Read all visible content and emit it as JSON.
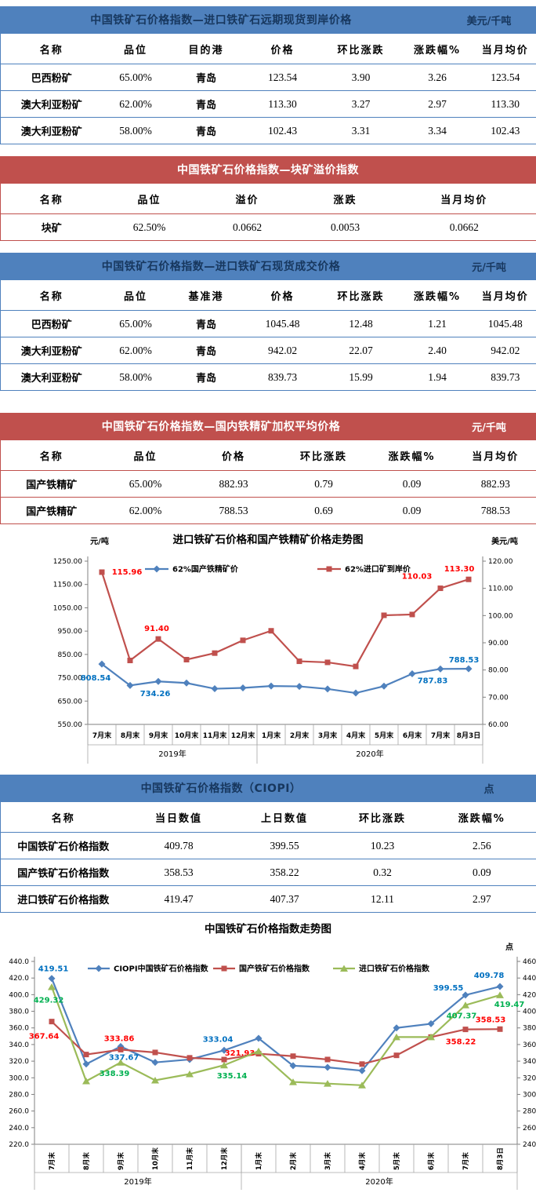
{
  "tables": [
    {
      "theme": "blue",
      "title": "中国铁矿石价格指数—进口铁矿石远期现货到岸价格",
      "unit": "美元/千吨",
      "columns": [
        "名称",
        "品位",
        "目的港",
        "价格",
        "环比涨跌",
        "涨跌幅%",
        "当月均价"
      ],
      "rows": [
        [
          "巴西粉矿",
          "65.00%",
          "青岛",
          "123.54",
          "3.90",
          "3.26",
          "123.54"
        ],
        [
          "澳大利亚粉矿",
          "62.00%",
          "青岛",
          "113.30",
          "3.27",
          "2.97",
          "113.30"
        ],
        [
          "澳大利亚粉矿",
          "58.00%",
          "青岛",
          "102.43",
          "3.31",
          "3.34",
          "102.43"
        ]
      ]
    },
    {
      "theme": "red",
      "title": "中国铁矿石价格指数—块矿溢价指数",
      "unit": "",
      "columns": [
        "名称",
        "品位",
        "溢价",
        "涨跌",
        "当月均价"
      ],
      "rows": [
        [
          "块矿",
          "62.50%",
          "0.0662",
          "0.0053",
          "0.0662"
        ]
      ]
    },
    {
      "theme": "blue",
      "title": "中国铁矿石价格指数—进口铁矿石现货成交价格",
      "unit": "元/千吨",
      "columns": [
        "名称",
        "品位",
        "基准港",
        "价格",
        "环比涨跌",
        "涨跌幅%",
        "当月均价"
      ],
      "rows": [
        [
          "巴西粉矿",
          "65.00%",
          "青岛",
          "1045.48",
          "12.48",
          "1.21",
          "1045.48"
        ],
        [
          "澳大利亚粉矿",
          "62.00%",
          "青岛",
          "942.02",
          "22.07",
          "2.40",
          "942.02"
        ],
        [
          "澳大利亚粉矿",
          "58.00%",
          "青岛",
          "839.73",
          "15.99",
          "1.94",
          "839.73"
        ]
      ]
    },
    {
      "theme": "red",
      "title": "中国铁矿石价格指数—国内铁精矿加权平均价格",
      "unit": "元/千吨",
      "columns": [
        "名称",
        "品位",
        "价格",
        "环比涨跌",
        "涨跌幅%",
        "当月均价"
      ],
      "rows": [
        [
          "国产铁精矿",
          "65.00%",
          "882.93",
          "0.79",
          "0.09",
          "882.93"
        ],
        [
          "国产铁精矿",
          "62.00%",
          "788.53",
          "0.69",
          "0.09",
          "788.53"
        ]
      ]
    },
    {
      "theme": "blue",
      "title": "中国铁矿石价格指数（CIOPI）",
      "unit": "点",
      "columns": [
        "名称",
        "当日数值",
        "上日数值",
        "环比涨跌",
        "涨跌幅%"
      ],
      "rows": [
        [
          "中国铁矿石价格指数",
          "409.78",
          "399.55",
          "10.23",
          "2.56"
        ],
        [
          "国产铁矿石价格指数",
          "358.53",
          "358.22",
          "0.32",
          "0.09"
        ],
        [
          "进口铁矿石价格指数",
          "419.47",
          "407.37",
          "12.11",
          "2.97"
        ]
      ]
    }
  ],
  "chart_data": [
    {
      "type": "line",
      "title": "进口铁矿石价格和国产铁精矿价格走势图",
      "left_caption": "元/吨",
      "right_caption": "美元/吨",
      "axes": {
        "left": {
          "min": 550,
          "max": 1250,
          "ticks": [
            "1250.00",
            "1150.00",
            "1050.00",
            "950.00",
            "850.00",
            "750.00",
            "650.00",
            "550.00"
          ]
        },
        "right": {
          "min": 60,
          "max": 120,
          "ticks": [
            "120.00",
            "110.00",
            "100.00",
            "90.00",
            "80.00",
            "70.00",
            "60.00"
          ]
        }
      },
      "categories": [
        "7月末",
        "8月末",
        "9月末",
        "10月末",
        "11月末",
        "12月末",
        "1月末",
        "2月末",
        "3月末",
        "4月末",
        "5月末",
        "6月末",
        "7月末",
        "8月3日"
      ],
      "year_groups": [
        {
          "label": "2019年",
          "span": 6
        },
        {
          "label": "2020年",
          "span": 8
        }
      ],
      "grid": false,
      "legend_position": "top-inside",
      "series": [
        {
          "name": "62%国产铁精矿价",
          "axis": "left",
          "color": "#4F81BD",
          "label_color": "#0070C0",
          "marker": "diamond",
          "values": [
            808.54,
            717.0,
            734.26,
            727.5,
            703.0,
            706.5,
            714.5,
            713.0,
            702.0,
            684.5,
            714.0,
            767.0,
            787.83,
            788.53
          ],
          "point_labels": [
            {
              "i": 0,
              "text": "808.54",
              "dx": -8,
              "dy": 21
            },
            {
              "i": 2,
              "text": "734.26",
              "dx": -4,
              "dy": 19
            },
            {
              "i": 12,
              "text": "787.83",
              "dx": -10,
              "dy": 18
            },
            {
              "i": 13,
              "text": "788.53",
              "dx": -6,
              "dy": -8
            }
          ]
        },
        {
          "name": "62%进口矿到岸价",
          "axis": "right",
          "color": "#C0504D",
          "label_color": "#FF0000",
          "marker": "square",
          "values": [
            115.96,
            83.5,
            91.4,
            83.8,
            86.2,
            90.9,
            94.4,
            83.2,
            82.8,
            81.3,
            100.1,
            100.4,
            110.03,
            113.3
          ],
          "point_labels": [
            {
              "i": 0,
              "text": "115.96",
              "dx": 32,
              "dy": 3
            },
            {
              "i": 2,
              "text": "91.40",
              "dx": -2,
              "dy": -10
            },
            {
              "i": 12,
              "text": "110.03",
              "dx": -30,
              "dy": -12
            },
            {
              "i": 13,
              "text": "113.30",
              "dx": -12,
              "dy": -10
            }
          ]
        }
      ]
    },
    {
      "type": "line",
      "title": "中国铁矿石价格指数走势图",
      "left_caption": "",
      "right_caption": "点",
      "axes": {
        "left": {
          "min": 220,
          "max": 440,
          "ticks": [
            "440.0",
            "420.0",
            "400.0",
            "380.0",
            "360.0",
            "340.0",
            "320.0",
            "300.0",
            "280.0",
            "260.0",
            "240.0",
            "220.0"
          ]
        },
        "right": {
          "min": 240,
          "max": 460,
          "ticks": [
            "460.0",
            "440.0",
            "420.0",
            "400.0",
            "380.0",
            "360.0",
            "340.0",
            "320.0",
            "300.0",
            "280.0",
            "260.0",
            "240.0"
          ]
        }
      },
      "categories": [
        "7月末",
        "8月末",
        "9月末",
        "10月末",
        "11月末",
        "12月末",
        "1月末",
        "2月末",
        "3月末",
        "4月末",
        "5月末",
        "6月末",
        "7月末",
        "8月3日"
      ],
      "year_groups": [
        {
          "label": "2019年",
          "span": 6
        },
        {
          "label": "2020年",
          "span": 8
        }
      ],
      "grid": false,
      "legend_position": "top-inside",
      "series": [
        {
          "name": "CIOPI中国铁矿石价格指数",
          "axis": "left",
          "color": "#4F81BD",
          "label_color": "#0070C0",
          "marker": "diamond",
          "values": [
            419.51,
            316.5,
            337.67,
            318.5,
            322.0,
            333.04,
            347.5,
            314.5,
            312.5,
            308.5,
            360.0,
            365.0,
            399.55,
            409.78
          ],
          "point_labels": [
            {
              "i": 0,
              "text": "419.51",
              "dx": 2,
              "dy": -9
            },
            {
              "i": 2,
              "text": "337.67",
              "dx": 4,
              "dy": 17
            },
            {
              "i": 5,
              "text": "333.04",
              "dx": -8,
              "dy": -11
            },
            {
              "i": 12,
              "text": "399.55",
              "dx": -22,
              "dy": -6
            },
            {
              "i": 13,
              "text": "409.78",
              "dx": -14,
              "dy": -11
            }
          ]
        },
        {
          "name": "国产铁矿石价格指数",
          "axis": "left",
          "color": "#C0504D",
          "label_color": "#FF0000",
          "marker": "square",
          "values": [
            367.64,
            328.0,
            333.86,
            330.5,
            324.0,
            321.93,
            329.0,
            326.0,
            322.0,
            316.5,
            327.0,
            349.0,
            358.22,
            358.53
          ],
          "point_labels": [
            {
              "i": 0,
              "text": "367.64",
              "dx": -10,
              "dy": 22
            },
            {
              "i": 2,
              "text": "333.86",
              "dx": -2,
              "dy": -11
            },
            {
              "i": 5,
              "text": "321.93",
              "dx": 20,
              "dy": -5
            },
            {
              "i": 12,
              "text": "358.22",
              "dx": -6,
              "dy": 19
            },
            {
              "i": 13,
              "text": "358.53",
              "dx": -12,
              "dy": -9
            }
          ]
        },
        {
          "name": "进口铁矿石价格指数",
          "axis": "right",
          "color": "#9BBB59",
          "label_color": "#00B050",
          "marker": "triangle",
          "values": [
            429.32,
            316.0,
            338.39,
            317.0,
            324.5,
            335.14,
            352.0,
            315.0,
            313.0,
            311.0,
            369.0,
            369.0,
            407.37,
            419.47
          ],
          "point_labels": [
            {
              "i": 0,
              "text": "429.32",
              "dx": -4,
              "dy": 20
            },
            {
              "i": 2,
              "text": "338.39",
              "dx": -8,
              "dy": 17
            },
            {
              "i": 5,
              "text": "335.14",
              "dx": 10,
              "dy": 17
            },
            {
              "i": 12,
              "text": "407.37",
              "dx": -5,
              "dy": 17
            },
            {
              "i": 13,
              "text": "419.47",
              "dx": 12,
              "dy": 15
            }
          ]
        }
      ]
    }
  ]
}
